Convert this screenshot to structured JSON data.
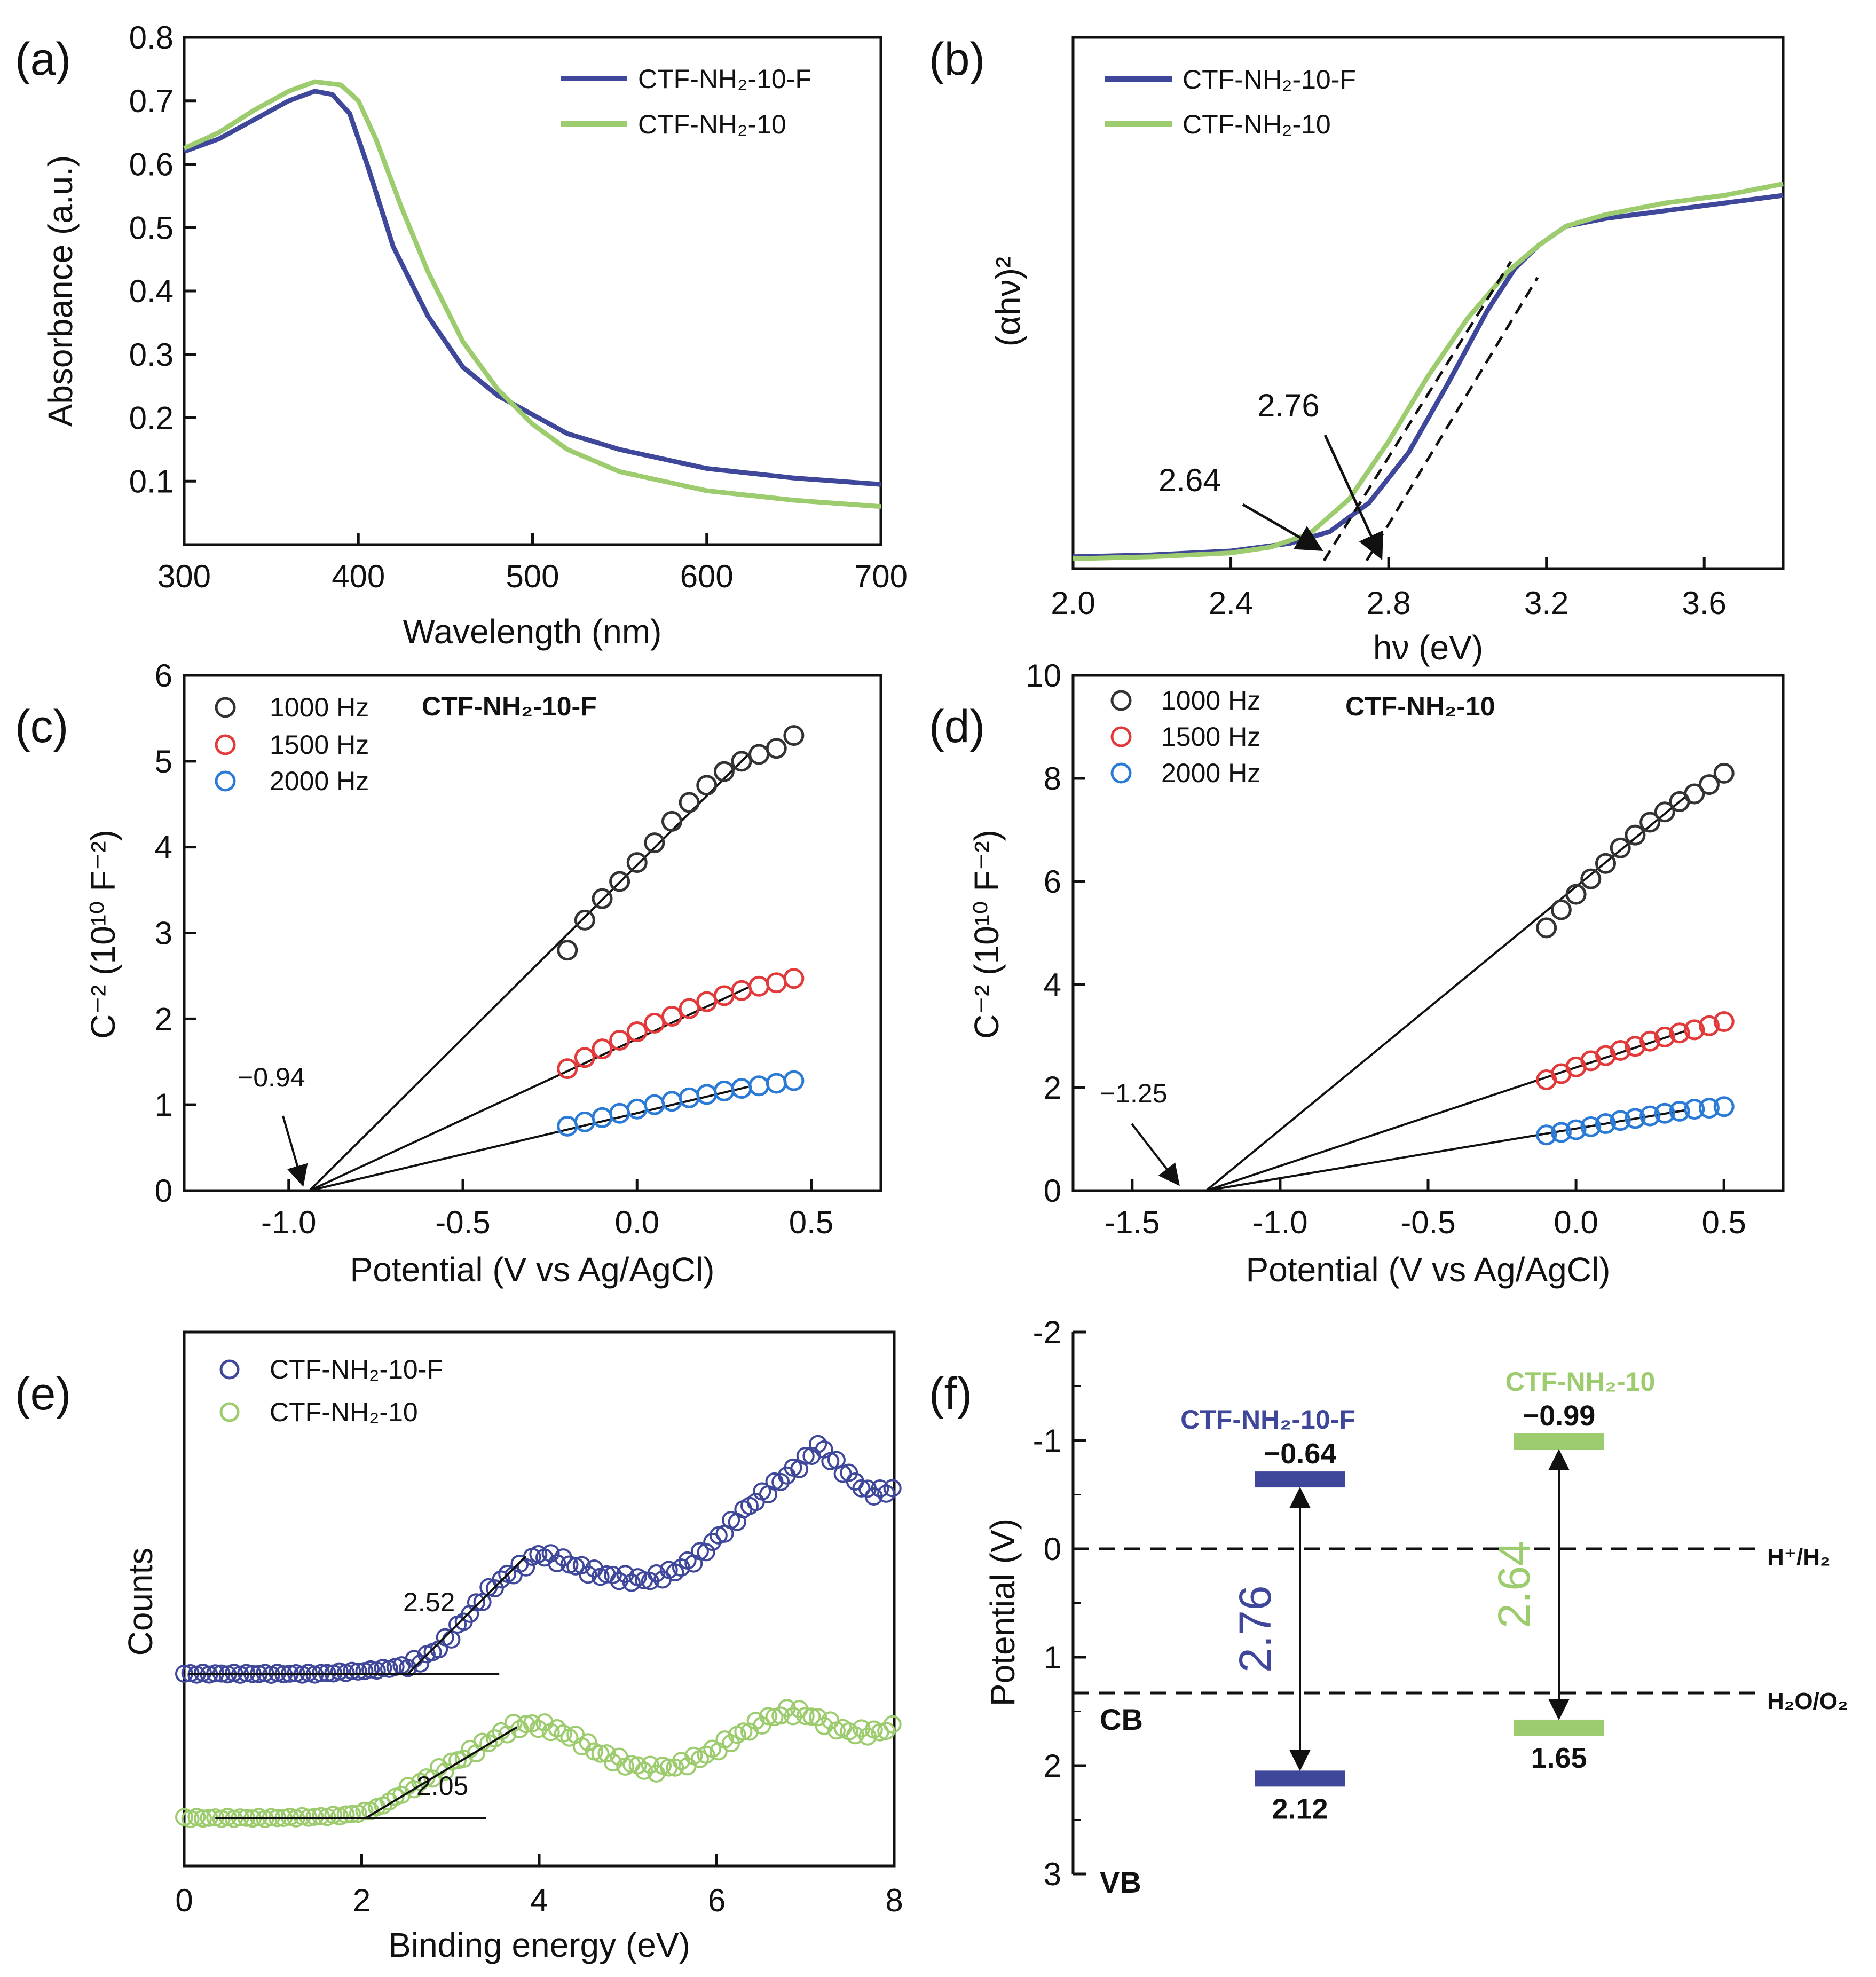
{
  "colors": {
    "blue": "#3f479a",
    "green": "#9ccc6e",
    "black": "#333333",
    "red": "#e23a3a",
    "sky": "#2b7bd6",
    "dark": "#111111"
  },
  "chart_data": [
    {
      "id": "a",
      "panel_label": "(a)",
      "type": "line",
      "xlabel": "Wavelength (nm)",
      "ylabel": "Absorbance (a.u.)",
      "xlim": [
        300,
        700
      ],
      "ylim": [
        0.0,
        0.8
      ],
      "xticks": [
        "300",
        "400",
        "500",
        "600",
        "700"
      ],
      "yticks": [
        "0.1",
        "0.2",
        "0.3",
        "0.4",
        "0.5",
        "0.6",
        "0.7",
        "0.8"
      ],
      "series": [
        {
          "name": "CTF-NH₂-10-F",
          "color": "blue",
          "x": [
            300,
            320,
            340,
            360,
            375,
            385,
            395,
            405,
            420,
            440,
            460,
            480,
            500,
            520,
            550,
            600,
            650,
            700
          ],
          "y": [
            0.62,
            0.64,
            0.67,
            0.7,
            0.715,
            0.71,
            0.68,
            0.6,
            0.47,
            0.36,
            0.28,
            0.235,
            0.205,
            0.175,
            0.15,
            0.12,
            0.105,
            0.095
          ]
        },
        {
          "name": "CTF-NH₂-10",
          "color": "green",
          "x": [
            300,
            320,
            340,
            360,
            375,
            390,
            400,
            410,
            425,
            440,
            460,
            480,
            500,
            520,
            550,
            600,
            650,
            700
          ],
          "y": [
            0.625,
            0.65,
            0.685,
            0.715,
            0.73,
            0.725,
            0.7,
            0.64,
            0.53,
            0.43,
            0.32,
            0.245,
            0.19,
            0.15,
            0.115,
            0.085,
            0.07,
            0.06
          ]
        }
      ]
    },
    {
      "id": "b",
      "panel_label": "(b)",
      "type": "line",
      "xlabel": "hν (eV)",
      "ylabel": "(αhν)²",
      "xlim": [
        2.0,
        3.8
      ],
      "ylim": [
        0.0,
        1.0
      ],
      "xticks": [
        "2.0",
        "2.4",
        "2.8",
        "3.2",
        "3.6"
      ],
      "series": [
        {
          "name": "CTF-NH₂-10-F",
          "color": "blue",
          "x": [
            2.0,
            2.2,
            2.4,
            2.55,
            2.65,
            2.75,
            2.85,
            2.95,
            3.05,
            3.12,
            3.18,
            3.25,
            3.35,
            3.5,
            3.65,
            3.8
          ],
          "y": [
            0.01,
            0.015,
            0.025,
            0.045,
            0.075,
            0.15,
            0.28,
            0.46,
            0.65,
            0.76,
            0.82,
            0.87,
            0.89,
            0.91,
            0.93,
            0.95
          ]
        },
        {
          "name": "CTF-NH₂-10",
          "color": "green",
          "x": [
            2.0,
            2.2,
            2.4,
            2.5,
            2.6,
            2.7,
            2.8,
            2.9,
            3.0,
            3.1,
            3.18,
            3.25,
            3.35,
            3.5,
            3.65,
            3.8
          ],
          "y": [
            0.005,
            0.01,
            0.02,
            0.035,
            0.07,
            0.16,
            0.31,
            0.48,
            0.63,
            0.75,
            0.82,
            0.87,
            0.9,
            0.93,
            0.95,
            0.98
          ]
        }
      ],
      "annotations": [
        "2.76",
        "2.64"
      ]
    },
    {
      "id": "c",
      "panel_label": "(c)",
      "type": "scatter",
      "title": "CTF-NH₂-10-F",
      "xlabel": "Potential (V vs Ag/AgCl)",
      "ylabel": "C⁻² (10¹⁰ F⁻²)",
      "xlim": [
        -1.3,
        0.7
      ],
      "ylim": [
        0,
        6
      ],
      "xticks": [
        "-1.0",
        "-0.5",
        "0.0",
        "0.5"
      ],
      "yticks": [
        "0",
        "1",
        "2",
        "3",
        "4",
        "5",
        "6"
      ],
      "intercept_label": "−0.94",
      "intercept": -0.94,
      "series": [
        {
          "name": "1000 Hz",
          "color": "black",
          "x": [
            -0.2,
            -0.15,
            -0.1,
            -0.05,
            0.0,
            0.05,
            0.1,
            0.15,
            0.2,
            0.25,
            0.3,
            0.35,
            0.4,
            0.45
          ],
          "y": [
            2.8,
            3.15,
            3.4,
            3.6,
            3.82,
            4.05,
            4.3,
            4.52,
            4.72,
            4.88,
            5.0,
            5.08,
            5.15,
            5.3
          ]
        },
        {
          "name": "1500 Hz",
          "color": "red",
          "x": [
            -0.2,
            -0.15,
            -0.1,
            -0.05,
            0.0,
            0.05,
            0.1,
            0.15,
            0.2,
            0.25,
            0.3,
            0.35,
            0.4,
            0.45
          ],
          "y": [
            1.42,
            1.55,
            1.65,
            1.75,
            1.85,
            1.95,
            2.03,
            2.12,
            2.2,
            2.27,
            2.33,
            2.38,
            2.42,
            2.47
          ]
        },
        {
          "name": "2000 Hz",
          "color": "sky",
          "x": [
            -0.2,
            -0.15,
            -0.1,
            -0.05,
            0.0,
            0.05,
            0.1,
            0.15,
            0.2,
            0.25,
            0.3,
            0.35,
            0.4,
            0.45
          ],
          "y": [
            0.75,
            0.8,
            0.85,
            0.9,
            0.95,
            1.0,
            1.04,
            1.08,
            1.12,
            1.16,
            1.19,
            1.22,
            1.25,
            1.28
          ]
        }
      ]
    },
    {
      "id": "d",
      "panel_label": "(d)",
      "type": "scatter",
      "title": "CTF-NH₂-10",
      "xlabel": "Potential (V vs Ag/AgCl)",
      "ylabel": "C⁻² (10¹⁰ F⁻²)",
      "xlim": [
        -1.7,
        0.7
      ],
      "ylim": [
        0,
        10
      ],
      "xticks": [
        "-1.5",
        "-1.0",
        "-0.5",
        "0.0",
        "0.5"
      ],
      "yticks": [
        "0",
        "2",
        "4",
        "6",
        "8",
        "10"
      ],
      "intercept_label": "−1.25",
      "intercept": -1.25,
      "series": [
        {
          "name": "1000 Hz",
          "color": "black",
          "x": [
            -0.1,
            -0.05,
            0.0,
            0.05,
            0.1,
            0.15,
            0.2,
            0.25,
            0.3,
            0.35,
            0.4,
            0.45,
            0.5
          ],
          "y": [
            5.1,
            5.45,
            5.75,
            6.05,
            6.35,
            6.65,
            6.9,
            7.15,
            7.35,
            7.55,
            7.7,
            7.88,
            8.1
          ]
        },
        {
          "name": "1500 Hz",
          "color": "red",
          "x": [
            -0.1,
            -0.05,
            0.0,
            0.05,
            0.1,
            0.15,
            0.2,
            0.25,
            0.3,
            0.35,
            0.4,
            0.45,
            0.5
          ],
          "y": [
            2.15,
            2.27,
            2.4,
            2.52,
            2.62,
            2.72,
            2.8,
            2.9,
            2.98,
            3.06,
            3.12,
            3.2,
            3.28
          ]
        },
        {
          "name": "2000 Hz",
          "color": "sky",
          "x": [
            -0.1,
            -0.05,
            0.0,
            0.05,
            0.1,
            0.15,
            0.2,
            0.25,
            0.3,
            0.35,
            0.4,
            0.45,
            0.5
          ],
          "y": [
            1.08,
            1.13,
            1.18,
            1.24,
            1.3,
            1.36,
            1.4,
            1.45,
            1.5,
            1.54,
            1.58,
            1.6,
            1.63
          ]
        }
      ]
    },
    {
      "id": "e",
      "panel_label": "(e)",
      "type": "scatter",
      "xlabel": "Binding energy (eV)",
      "ylabel": "Counts",
      "xlim": [
        0,
        8
      ],
      "ylim": [
        0,
        1
      ],
      "xticks": [
        "0",
        "2",
        "4",
        "6",
        "8"
      ],
      "series": [
        {
          "name": "CTF-NH₂-10-F",
          "color": "blue",
          "onset_label": "2.52",
          "x": [
            0,
            0.5,
            1.0,
            1.5,
            2.0,
            2.3,
            2.6,
            2.8,
            3.0,
            3.2,
            3.4,
            3.6,
            3.8,
            4.0,
            4.3,
            4.6,
            4.9,
            5.2,
            5.5,
            5.8,
            6.1,
            6.4,
            6.7,
            7.0,
            7.15,
            7.3,
            7.5,
            7.7,
            7.9,
            8.0
          ],
          "y": [
            0.36,
            0.36,
            0.36,
            0.36,
            0.365,
            0.37,
            0.38,
            0.4,
            0.43,
            0.47,
            0.51,
            0.54,
            0.56,
            0.585,
            0.57,
            0.55,
            0.54,
            0.535,
            0.55,
            0.58,
            0.63,
            0.68,
            0.72,
            0.76,
            0.79,
            0.76,
            0.73,
            0.7,
            0.7,
            0.71
          ]
        },
        {
          "name": "CTF-NH₂-10",
          "color": "green",
          "onset_label": "2.05",
          "x": [
            0,
            0.5,
            1.0,
            1.5,
            1.8,
            2.0,
            2.2,
            2.5,
            2.8,
            3.1,
            3.4,
            3.7,
            3.9,
            4.1,
            4.4,
            4.7,
            5.0,
            5.3,
            5.6,
            5.9,
            6.2,
            6.5,
            6.8,
            7.0,
            7.2,
            7.5,
            7.8,
            8.0
          ],
          "y": [
            0.09,
            0.09,
            0.09,
            0.092,
            0.095,
            0.1,
            0.11,
            0.14,
            0.17,
            0.2,
            0.23,
            0.26,
            0.265,
            0.26,
            0.24,
            0.21,
            0.19,
            0.18,
            0.19,
            0.21,
            0.24,
            0.27,
            0.29,
            0.285,
            0.27,
            0.25,
            0.25,
            0.26
          ]
        }
      ]
    },
    {
      "id": "f",
      "panel_label": "(f)",
      "type": "band-diagram",
      "ylabel": "Potential (V)",
      "ylim": [
        -2,
        3
      ],
      "yticks": [
        "-2",
        "-1",
        "0",
        "1",
        "2",
        "3"
      ],
      "cb_label": "CB",
      "vb_label": "VB",
      "reference_lines": [
        {
          "label": "H⁺/H₂",
          "value": 0.0
        },
        {
          "label": "H₂O/O₂",
          "value": 1.33
        }
      ],
      "materials": [
        {
          "name": "CTF-NH₂-10-F",
          "color": "blue",
          "cb": -0.64,
          "vb": 2.12,
          "cb_label": "−0.64",
          "vb_label": "2.12",
          "gap_label": "2.76"
        },
        {
          "name": "CTF-NH₂-10",
          "color": "green",
          "cb": -0.99,
          "vb": 1.65,
          "cb_label": "−0.99",
          "vb_label": "1.65",
          "gap_label": "2.64"
        }
      ]
    }
  ]
}
